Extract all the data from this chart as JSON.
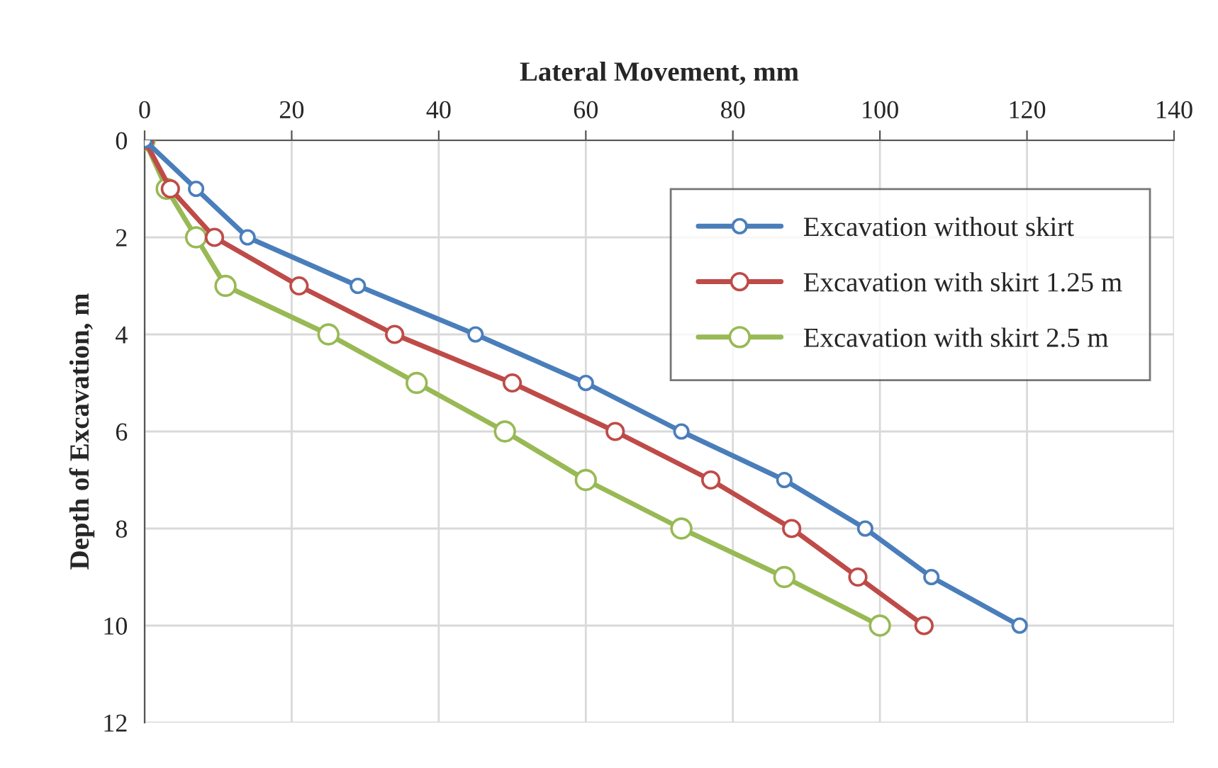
{
  "chart_data": {
    "type": "line",
    "xlabel": "Lateral Movement, mm",
    "ylabel": "Depth of Excavation, m",
    "xlim": [
      0,
      140
    ],
    "xticks": [
      0,
      20,
      40,
      60,
      80,
      100,
      120,
      140
    ],
    "ylim": [
      12,
      0
    ],
    "yticks": [
      0,
      2,
      4,
      6,
      8,
      10,
      12
    ],
    "grid": true,
    "legend": "top right",
    "marker": "circle",
    "line_style": "solid",
    "series": [
      {
        "name": "Excavation without skirt",
        "color": "#4a7ebb",
        "x": [
          0,
          7,
          14,
          29,
          45,
          60,
          73,
          87,
          98,
          107,
          119
        ],
        "values": [
          0,
          1,
          2,
          3,
          4,
          5,
          6,
          7,
          8,
          9,
          10
        ]
      },
      {
        "name": "Excavation with skirt 1.25 m",
        "color": "#be4b48",
        "x": [
          0,
          3.5,
          9.5,
          21,
          34,
          50,
          64,
          77,
          88,
          97,
          106
        ],
        "values": [
          0,
          1,
          2,
          3,
          4,
          5,
          6,
          7,
          8,
          9,
          10
        ]
      },
      {
        "name": "Excavation with skirt 2.5 m",
        "color": "#98b954",
        "x": [
          0,
          3,
          7,
          11,
          25,
          37,
          49,
          60,
          73,
          87,
          100
        ],
        "values": [
          0,
          1,
          2,
          3,
          4,
          5,
          6,
          7,
          8,
          9,
          10
        ]
      }
    ]
  }
}
